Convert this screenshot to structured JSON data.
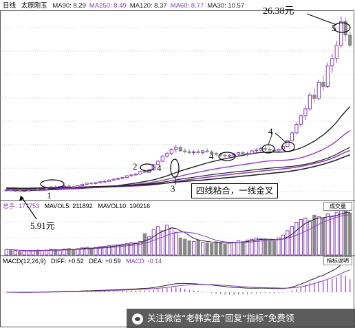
{
  "header": {
    "period": "日线",
    "stock": "太原刚玉",
    "ma_items": [
      {
        "label": "MA90: 8.29",
        "color": "#222222"
      },
      {
        "label": "MA250: 8.49",
        "color": "#8a3ec0"
      },
      {
        "label": "MA120: 8.37",
        "color": "#222222"
      },
      {
        "label": "MA60: 8.77",
        "color": "#8a3ec0"
      },
      {
        "label": "MA30: 10.57",
        "color": "#222222"
      }
    ]
  },
  "annotations": {
    "peak_price": "26.38元",
    "low_price": "5.91元",
    "n1": "1",
    "n2": "2",
    "n3": "3",
    "n4a": "4",
    "n4b": "4",
    "n4c": "4",
    "n5": "5",
    "callout": "四线粘合，一线金叉"
  },
  "volume_header": {
    "total": "总手: 177753",
    "mavol5": "MAVOL5: 211892",
    "mavol10": "MAVOL10: 190216",
    "button": "成交量"
  },
  "macd_header": {
    "params": "MACD(12,26,9)",
    "diff": "DIFF: +0.52",
    "dea": "DEA: +0.59",
    "macd": "MACD: -0.14",
    "button": "指标说明"
  },
  "footer": "关注微信“老韩实盘”回复“指标”免费领",
  "colors": {
    "purple": "#8a3ec0",
    "gray": "#8a8a8a",
    "line": "#222222"
  },
  "chart_data": {
    "type": "candlestick",
    "axes": {
      "price_ylim": [
        5,
        27
      ]
    },
    "candles": [
      [
        6.1,
        6.2,
        6.0,
        6.15
      ],
      [
        6.15,
        6.2,
        6.0,
        6.05
      ],
      [
        6.05,
        6.15,
        5.95,
        6.1
      ],
      [
        6.1,
        6.2,
        6.0,
        6.0
      ],
      [
        6.0,
        6.1,
        5.91,
        6.05
      ],
      [
        6.05,
        6.2,
        6.0,
        6.15
      ],
      [
        6.15,
        6.3,
        6.1,
        6.25
      ],
      [
        6.25,
        6.35,
        6.1,
        6.2
      ],
      [
        6.2,
        6.3,
        6.1,
        6.2
      ],
      [
        6.2,
        6.4,
        6.15,
        6.35
      ],
      [
        6.35,
        6.6,
        6.3,
        6.5
      ],
      [
        6.5,
        6.7,
        6.4,
        6.45
      ],
      [
        6.45,
        6.6,
        6.35,
        6.55
      ],
      [
        6.55,
        6.7,
        6.45,
        6.6
      ],
      [
        6.6,
        6.8,
        6.5,
        6.55
      ],
      [
        6.55,
        6.7,
        6.4,
        6.5
      ],
      [
        6.5,
        6.7,
        6.45,
        6.65
      ],
      [
        6.65,
        6.9,
        6.6,
        6.8
      ],
      [
        6.8,
        7.0,
        6.7,
        6.95
      ],
      [
        6.95,
        7.1,
        6.8,
        6.9
      ],
      [
        6.9,
        7.1,
        6.8,
        7.0
      ],
      [
        7.0,
        7.2,
        6.9,
        7.1
      ],
      [
        7.1,
        7.3,
        7.0,
        7.15
      ],
      [
        7.15,
        7.4,
        7.1,
        7.3
      ],
      [
        7.3,
        7.5,
        7.2,
        7.4
      ],
      [
        7.4,
        7.6,
        7.3,
        7.5
      ],
      [
        7.5,
        7.7,
        7.4,
        7.6
      ],
      [
        7.6,
        7.9,
        7.5,
        7.8
      ],
      [
        7.8,
        8.0,
        7.7,
        7.9
      ],
      [
        7.9,
        8.1,
        7.8,
        8.0
      ],
      [
        8.0,
        8.4,
        7.9,
        8.3
      ],
      [
        8.3,
        8.5,
        8.1,
        8.2
      ],
      [
        8.2,
        8.6,
        8.1,
        8.5
      ],
      [
        8.5,
        9.2,
        8.4,
        9.1
      ],
      [
        9.1,
        9.6,
        9.0,
        9.5
      ],
      [
        9.5,
        10.2,
        9.4,
        10.1
      ],
      [
        10.1,
        10.6,
        9.9,
        10.4
      ],
      [
        10.4,
        11.0,
        10.2,
        10.9
      ],
      [
        10.9,
        11.4,
        10.5,
        11.1
      ],
      [
        11.1,
        11.3,
        10.6,
        10.7
      ],
      [
        10.7,
        11.0,
        10.4,
        10.6
      ],
      [
        10.6,
        10.9,
        10.3,
        10.5
      ],
      [
        10.5,
        10.8,
        10.2,
        10.6
      ],
      [
        10.6,
        10.9,
        10.4,
        10.5
      ],
      [
        10.5,
        10.8,
        10.3,
        10.7
      ],
      [
        10.7,
        11.0,
        10.5,
        10.6
      ],
      [
        10.6,
        10.8,
        10.3,
        10.4
      ],
      [
        10.4,
        10.6,
        10.1,
        10.3
      ],
      [
        10.3,
        10.5,
        10.0,
        10.2
      ],
      [
        10.2,
        10.4,
        9.9,
        10.1
      ],
      [
        10.1,
        10.3,
        9.9,
        10.2
      ],
      [
        10.2,
        10.5,
        10.0,
        10.3
      ],
      [
        10.3,
        10.6,
        10.1,
        10.5
      ],
      [
        10.5,
        10.7,
        10.2,
        10.3
      ],
      [
        10.3,
        10.6,
        10.1,
        10.4
      ],
      [
        10.4,
        10.8,
        10.3,
        10.7
      ],
      [
        10.7,
        11.0,
        10.5,
        10.8
      ],
      [
        10.8,
        11.2,
        10.6,
        11.0
      ],
      [
        11.0,
        11.3,
        10.7,
        10.9
      ],
      [
        10.9,
        11.1,
        10.6,
        10.8
      ],
      [
        10.8,
        11.0,
        10.5,
        10.7
      ],
      [
        10.7,
        11.0,
        10.5,
        10.9
      ],
      [
        10.9,
        11.3,
        10.7,
        11.2
      ],
      [
        11.2,
        12.0,
        11.1,
        11.9
      ],
      [
        11.9,
        13.0,
        11.8,
        12.8
      ],
      [
        12.8,
        14.0,
        12.6,
        13.8
      ],
      [
        13.8,
        15.0,
        13.5,
        14.8
      ],
      [
        14.8,
        16.0,
        14.3,
        15.6
      ],
      [
        15.6,
        17.5,
        15.4,
        17.2
      ],
      [
        17.2,
        18.0,
        16.3,
        16.8
      ],
      [
        16.8,
        19.0,
        16.6,
        18.7
      ],
      [
        18.7,
        19.5,
        17.7,
        18.2
      ],
      [
        18.2,
        21.0,
        18.0,
        20.6
      ],
      [
        20.6,
        22.0,
        19.8,
        21.5
      ],
      [
        21.5,
        23.5,
        21.0,
        23.0
      ],
      [
        23.0,
        26.38,
        22.7,
        25.8
      ],
      [
        25.8,
        26.2,
        23.5,
        24.2
      ],
      [
        24.2,
        24.6,
        22.8,
        23.0
      ]
    ],
    "volume": [
      40,
      35,
      30,
      25,
      28,
      30,
      32,
      35,
      30,
      34,
      40,
      38,
      36,
      42,
      45,
      40,
      44,
      50,
      55,
      48,
      52,
      58,
      60,
      65,
      70,
      72,
      75,
      80,
      88,
      85,
      95,
      150,
      130,
      180,
      200,
      170,
      210,
      190,
      160,
      120,
      110,
      100,
      95,
      105,
      90,
      85,
      80,
      92,
      88,
      76,
      84,
      90,
      100,
      95,
      105,
      110,
      120,
      115,
      108,
      100,
      98,
      120,
      140,
      170,
      200,
      230,
      250,
      260,
      240,
      280,
      270,
      260,
      290,
      270,
      300,
      320,
      310,
      295
    ],
    "annotation_ovals": [
      "1",
      "2",
      "3",
      "4",
      "4",
      "4",
      "5"
    ]
  }
}
